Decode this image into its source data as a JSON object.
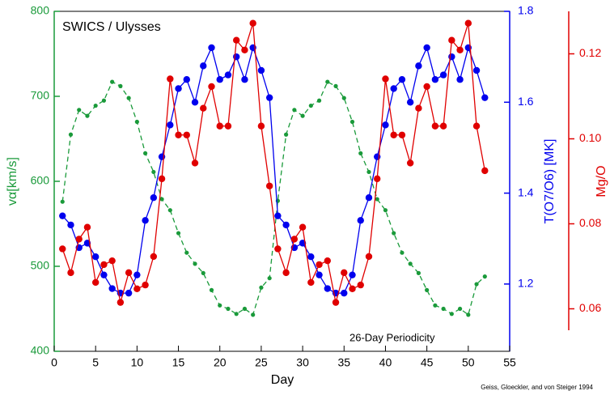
{
  "chart_data": {
    "type": "line",
    "title": "SWICS / Ulysses",
    "annotation": "26-Day Periodicity",
    "credit": "Geiss, Gloeckler, and von Steiger 1994",
    "xlabel": "Day",
    "ylabel": "vα[km/s]",
    "y2label": "T(O7/O6) [MK]",
    "y3label": "Mg/O",
    "x": [
      1,
      2,
      3,
      4,
      5,
      6,
      7,
      8,
      9,
      10,
      11,
      12,
      13,
      14,
      15,
      16,
      17,
      18,
      19,
      20,
      21,
      22,
      23,
      24,
      25,
      26,
      27,
      28,
      29,
      30,
      31,
      32,
      33,
      34,
      35,
      36,
      37,
      38,
      39,
      40,
      41,
      42,
      43,
      44,
      45,
      46,
      47,
      48,
      49,
      50,
      51,
      52
    ],
    "xlim": [
      0,
      55
    ],
    "xticks": [
      0,
      5,
      10,
      15,
      20,
      25,
      30,
      35,
      40,
      45,
      50,
      55
    ],
    "ylim": [
      400,
      800
    ],
    "yticks": [
      400,
      500,
      600,
      700,
      800
    ],
    "y2lim": [
      1.052,
      1.8
    ],
    "y2ticks": [
      1.2,
      1.4,
      1.6,
      1.8
    ],
    "y3lim": [
      0.05,
      0.13
    ],
    "y3ticks": [
      0.06,
      0.08,
      {
        "value": 0.1,
        "label": "0.10"
      },
      0.12
    ],
    "series": [
      {
        "color": "#1a9a3a",
        "axis": "y",
        "style": "dashed",
        "values": [
          576,
          655,
          684,
          677,
          689,
          695,
          717,
          712,
          698,
          670,
          633,
          611,
          579,
          566,
          539,
          516,
          503,
          492,
          472,
          454,
          450,
          444,
          450,
          443,
          475,
          486,
          577,
          655,
          684,
          677,
          689,
          695,
          717,
          712,
          698,
          670,
          633,
          611,
          579,
          566,
          539,
          516,
          503,
          492,
          472,
          454,
          450,
          444,
          450,
          443,
          479,
          488
        ]
      },
      {
        "color": "#0000ee",
        "axis": "y2",
        "style": "solid",
        "values": [
          1.35,
          1.33,
          1.28,
          1.29,
          1.26,
          1.22,
          1.19,
          1.18,
          1.18,
          1.22,
          1.34,
          1.39,
          1.48,
          1.55,
          1.63,
          1.65,
          1.6,
          1.68,
          1.72,
          1.65,
          1.66,
          1.7,
          1.65,
          1.72,
          1.67,
          1.61,
          1.35,
          1.33,
          1.28,
          1.29,
          1.26,
          1.22,
          1.19,
          1.18,
          1.18,
          1.22,
          1.34,
          1.39,
          1.48,
          1.55,
          1.63,
          1.65,
          1.6,
          1.68,
          1.72,
          1.65,
          1.66,
          1.7,
          1.65,
          1.72,
          1.67,
          1.61
        ]
      },
      {
        "color": "#e00000",
        "axis": "y3",
        "style": "solid",
        "values": [
          0.0741,
          0.0685,
          0.0764,
          0.0792,
          0.0662,
          0.0704,
          0.0713,
          0.0615,
          0.0685,
          0.0647,
          0.0656,
          0.0723,
          0.0906,
          0.1141,
          0.1009,
          0.1009,
          0.0943,
          0.1072,
          0.1123,
          0.103,
          0.103,
          0.1232,
          0.1209,
          0.1272,
          0.103,
          0.0889,
          0.0741,
          0.0685,
          0.0764,
          0.0792,
          0.0662,
          0.0704,
          0.0713,
          0.0615,
          0.0685,
          0.0647,
          0.0656,
          0.0723,
          0.0906,
          0.1141,
          0.1009,
          0.1009,
          0.0943,
          0.1072,
          0.1123,
          0.103,
          0.103,
          0.1232,
          0.1209,
          0.1272,
          0.103,
          0.0925
        ]
      }
    ]
  }
}
